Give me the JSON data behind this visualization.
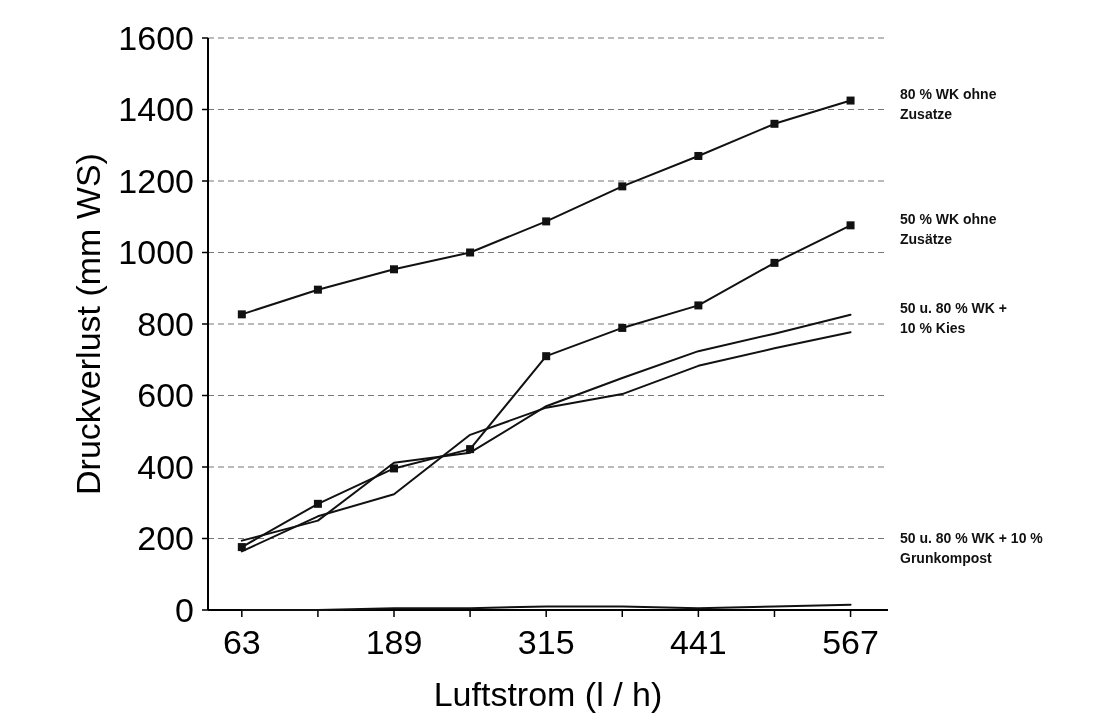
{
  "chart_data": {
    "type": "line",
    "xlabel": "Luftstrom (l / h)",
    "ylabel": "Druckverlust (mm WS)",
    "x": [
      63,
      126,
      189,
      252,
      315,
      378,
      441,
      504,
      567
    ],
    "xlim": [
      35,
      598
    ],
    "xticks": [
      63,
      {
        "value": 126,
        "label": null
      },
      189,
      {
        "value": 252,
        "label": null
      },
      315,
      {
        "value": 378,
        "label": null
      },
      441,
      {
        "value": 504,
        "label": null
      },
      567
    ],
    "ylim": [
      0,
      1600
    ],
    "yticks": [
      0,
      200,
      400,
      600,
      800,
      1000,
      1200,
      1400,
      1600
    ],
    "grid": "y",
    "line_style": "solid",
    "series": [
      {
        "name": "80 % WK ohne Zusatze",
        "color": "#111111",
        "marker": "square",
        "values": [
          827,
          896,
          953,
          1000,
          1087,
          1185,
          1270,
          1360,
          1425
        ]
      },
      {
        "name": "50 % WK ohne Zusätze",
        "color": "#111111",
        "marker": "square",
        "values": [
          176,
          297,
          396,
          450,
          710,
          789,
          852,
          971,
          1076
        ]
      },
      {
        "name": "50 u. 80 % WK + 10 % Kies",
        "color": "#111111",
        "marker": "none",
        "values": [
          194,
          250,
          412,
          440,
          570,
          649,
          724,
          773,
          826
        ]
      },
      {
        "color": "#111111",
        "marker": "none",
        "values": [
          164,
          262,
          324,
          490,
          566,
          604,
          683,
          732,
          777
        ]
      },
      {
        "name": "50 u. 80 % WK + 10 % Grunkompost",
        "color": "#111111",
        "marker": "none",
        "values": [
          0,
          0,
          5,
          5,
          10,
          10,
          5,
          10,
          15
        ]
      }
    ]
  }
}
